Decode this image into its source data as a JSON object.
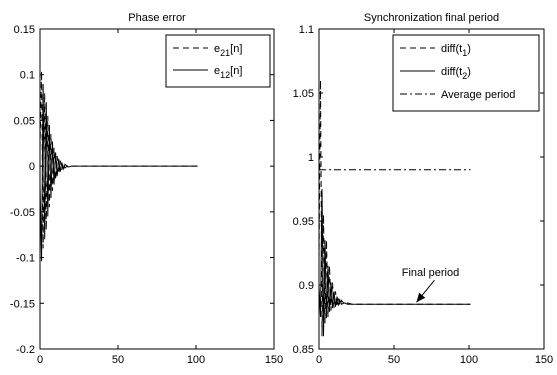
{
  "chart_data": [
    {
      "type": "line",
      "title": "Phase error",
      "xlabel": "",
      "ylabel": "",
      "xlim": [
        0,
        150
      ],
      "ylim": [
        -0.2,
        0.15
      ],
      "xticks": [
        0,
        50,
        100,
        150
      ],
      "yticks": [
        -0.2,
        -0.15,
        -0.1,
        -0.05,
        0,
        0.05,
        0.1,
        0.15
      ],
      "xtick_labels": [
        "0",
        "50",
        "100",
        "150"
      ],
      "ytick_labels": [
        "-0.2",
        "-0.15",
        "-0.1",
        "-0.05",
        "0",
        "0.05",
        "0.1",
        "0.15"
      ],
      "grid": false,
      "legend_position": "top-right",
      "series": [
        {
          "name": "e21[n]",
          "label_main": "e",
          "label_sub": "21",
          "label_tail": "[n]",
          "line_style": "dashed",
          "color": "#000000",
          "x": [
            0,
            1,
            2,
            3,
            4,
            5,
            6,
            7,
            8,
            9,
            10,
            11,
            12,
            13,
            14,
            15,
            16,
            18,
            20,
            25,
            30,
            40,
            60,
            80,
            101
          ],
          "y": [
            0.02,
            0.104,
            -0.09,
            0.08,
            -0.07,
            0.055,
            -0.045,
            0.035,
            -0.027,
            0.02,
            -0.015,
            0.011,
            -0.008,
            0.006,
            -0.004,
            0.003,
            -0.002,
            0.001,
            0,
            0,
            0,
            0,
            0,
            0,
            0
          ]
        },
        {
          "name": "e12[n]",
          "label_main": "e",
          "label_sub": "12",
          "label_tail": "[n]",
          "line_style": "solid",
          "color": "#000000",
          "x": [
            0,
            1,
            2,
            3,
            4,
            5,
            6,
            7,
            8,
            9,
            10,
            11,
            12,
            13,
            14,
            15,
            16,
            18,
            20,
            25,
            30,
            40,
            60,
            80,
            101
          ],
          "y": [
            -0.02,
            -0.104,
            0.09,
            -0.08,
            0.07,
            -0.055,
            0.045,
            -0.035,
            0.027,
            -0.02,
            0.015,
            -0.011,
            0.008,
            -0.006,
            0.004,
            -0.003,
            0.002,
            -0.001,
            0,
            0,
            0,
            0,
            0,
            0,
            0
          ]
        }
      ]
    },
    {
      "type": "line",
      "title": "Synchronization final period",
      "xlabel": "",
      "ylabel": "",
      "xlim": [
        0,
        150
      ],
      "ylim": [
        0.85,
        1.1
      ],
      "xticks": [
        0,
        50,
        100,
        150
      ],
      "yticks": [
        0.85,
        0.9,
        0.95,
        1,
        1.05,
        1.1
      ],
      "xtick_labels": [
        "0",
        "50",
        "100",
        "150"
      ],
      "ytick_labels": [
        "0.85",
        "0.9",
        "0.95",
        "1",
        "1.05",
        "1.1"
      ],
      "grid": false,
      "legend_position": "top-right",
      "annotation": {
        "text": "Final period",
        "points_to": [
          65,
          0.885
        ]
      },
      "series": [
        {
          "name": "diff(t1)",
          "label_main": "diff(t",
          "label_sub": "1",
          "label_tail": ")",
          "line_style": "dashed",
          "color": "#000000",
          "x": [
            0,
            1,
            2,
            3,
            4,
            5,
            6,
            7,
            8,
            9,
            10,
            11,
            12,
            13,
            14,
            15,
            17,
            19,
            22,
            30,
            40,
            60,
            80,
            101
          ],
          "y": [
            0.92,
            1.06,
            0.86,
            0.955,
            0.87,
            0.935,
            0.875,
            0.915,
            0.88,
            0.902,
            0.882,
            0.895,
            0.883,
            0.891,
            0.884,
            0.888,
            0.885,
            0.886,
            0.885,
            0.885,
            0.885,
            0.885,
            0.885,
            0.885
          ]
        },
        {
          "name": "diff(t2)",
          "label_main": "diff(t",
          "label_sub": "2",
          "label_tail": ")",
          "line_style": "solid",
          "color": "#000000",
          "x": [
            0,
            1,
            2,
            3,
            4,
            5,
            6,
            7,
            8,
            9,
            10,
            11,
            12,
            13,
            14,
            15,
            17,
            19,
            22,
            30,
            40,
            60,
            80,
            101
          ],
          "y": [
            0.9,
            0.875,
            0.975,
            0.86,
            0.935,
            0.874,
            0.915,
            0.879,
            0.902,
            0.882,
            0.895,
            0.883,
            0.891,
            0.884,
            0.888,
            0.885,
            0.886,
            0.885,
            0.885,
            0.885,
            0.885,
            0.885,
            0.885,
            0.885
          ]
        },
        {
          "name": "Average period",
          "label_main": "Average period",
          "label_sub": "",
          "label_tail": "",
          "line_style": "dashdot",
          "color": "#000000",
          "x": [
            0,
            101
          ],
          "y": [
            0.99,
            0.99
          ]
        }
      ]
    }
  ]
}
